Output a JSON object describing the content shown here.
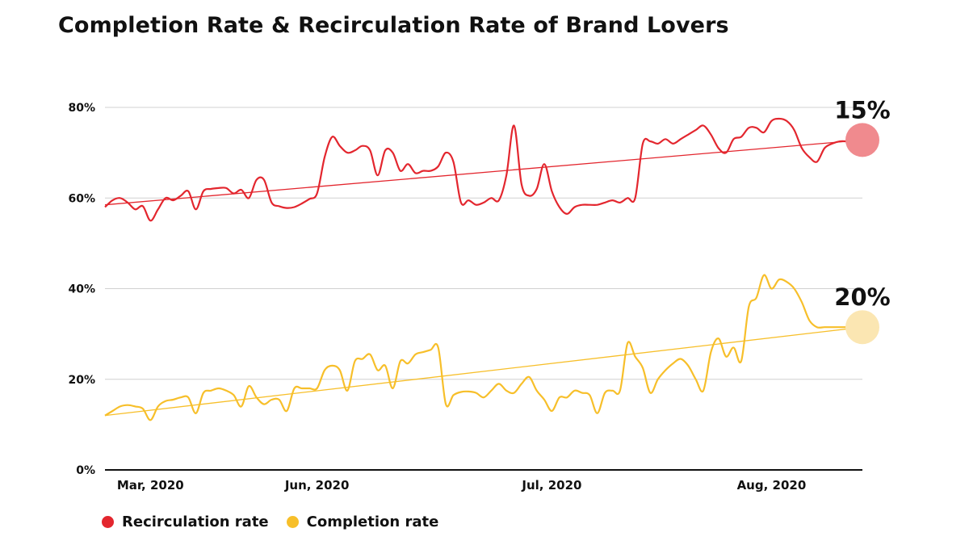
{
  "colors": {
    "recirculation": "#e3262e",
    "completion": "#f7bf2a",
    "recirculation_marker": "#f08a8e",
    "completion_marker": "#fbe6b2",
    "grid": "#d0d0d0",
    "axis": "#111111"
  },
  "chart_data": {
    "type": "line",
    "title": "Completion Rate & Recirculation Rate of Brand Lovers",
    "xlabel": "",
    "ylabel": "",
    "ylim": [
      0,
      80
    ],
    "y_ticks": [
      0,
      20,
      40,
      60,
      80
    ],
    "y_tick_labels": [
      "0%",
      "20%",
      "40%",
      "60%",
      "80%"
    ],
    "x_range": [
      0,
      100
    ],
    "x_tick_positions": [
      6,
      28,
      59,
      88
    ],
    "x_tick_labels": [
      "Mar, 2020",
      "Jun, 2020",
      "Jul, 2020",
      "Aug, 2020"
    ],
    "grid": true,
    "legend_position": "bottom-left",
    "series": [
      {
        "name": "Recirculation rate",
        "x": [
          0,
          1,
          2,
          3,
          4,
          5,
          6,
          7,
          8,
          9,
          10,
          11,
          12,
          13,
          14,
          15,
          16,
          17,
          18,
          19,
          20,
          21,
          22,
          23,
          24,
          25,
          26,
          27,
          28,
          29,
          30,
          31,
          32,
          33,
          34,
          35,
          36,
          37,
          38,
          39,
          40,
          41,
          42,
          43,
          44,
          45,
          46,
          47,
          48,
          49,
          50,
          51,
          52,
          53,
          54,
          55,
          56,
          57,
          58,
          59,
          60,
          61,
          62,
          63,
          64,
          65,
          66,
          67,
          68,
          69,
          70,
          71,
          72,
          73,
          74,
          75,
          76,
          77,
          78,
          79,
          80,
          81,
          82,
          83,
          84,
          85,
          86,
          87,
          88,
          89,
          90,
          91,
          92,
          93,
          94,
          95,
          96,
          97,
          98,
          99,
          100
        ],
        "values": [
          58,
          59.5,
          60,
          59,
          57.5,
          58.2,
          55,
          57.5,
          60,
          59.5,
          60.5,
          61.5,
          57.5,
          61.5,
          62,
          62.2,
          62.2,
          61,
          61.8,
          60,
          64,
          64,
          59,
          58.2,
          57.8,
          58,
          58.8,
          59.8,
          61,
          69,
          73.5,
          71.5,
          70,
          70.5,
          71.5,
          70.5,
          65,
          70.5,
          70,
          66,
          67.5,
          65.5,
          66,
          66,
          67,
          70,
          68,
          59,
          59.5,
          58.5,
          59,
          60,
          59.5,
          65,
          76,
          63,
          60.5,
          62,
          67.5,
          61.5,
          58,
          56.5,
          58,
          58.5,
          58.5,
          58.5,
          59,
          59.5,
          59,
          60,
          60,
          72,
          72.5,
          72,
          73,
          72,
          73,
          74,
          75,
          76,
          74,
          71,
          70,
          73,
          73.5,
          75.5,
          75.5,
          74.5,
          77,
          77.5,
          77,
          75,
          71,
          69,
          68,
          71,
          72,
          72.5,
          72.5,
          72.5,
          72.5
        ],
        "trend": [
          58.5,
          72.8
        ],
        "end_label": "15%"
      },
      {
        "name": "Completion rate",
        "x": [
          0,
          1,
          2,
          3,
          4,
          5,
          6,
          7,
          8,
          9,
          10,
          11,
          12,
          13,
          14,
          15,
          16,
          17,
          18,
          19,
          20,
          21,
          22,
          23,
          24,
          25,
          26,
          27,
          28,
          29,
          30,
          31,
          32,
          33,
          34,
          35,
          36,
          37,
          38,
          39,
          40,
          41,
          42,
          43,
          44,
          45,
          46,
          47,
          48,
          49,
          50,
          51,
          52,
          53,
          54,
          55,
          56,
          57,
          58,
          59,
          60,
          61,
          62,
          63,
          64,
          65,
          66,
          67,
          68,
          69,
          70,
          71,
          72,
          73,
          74,
          75,
          76,
          77,
          78,
          79,
          80,
          81,
          82,
          83,
          84,
          85,
          86,
          87,
          88,
          89,
          90,
          91,
          92,
          93,
          94,
          95,
          96,
          97,
          98,
          99,
          100
        ],
        "values": [
          12,
          13,
          14,
          14.3,
          14,
          13.5,
          11,
          14,
          15.2,
          15.5,
          16,
          16,
          12.5,
          17,
          17.5,
          18,
          17.5,
          16.5,
          14,
          18.5,
          16,
          14.5,
          15.5,
          15.5,
          13,
          18,
          18,
          18,
          18,
          22,
          23,
          22,
          17.5,
          24,
          24.5,
          25.5,
          22,
          23,
          18,
          24,
          23.5,
          25.5,
          26,
          26.5,
          27,
          14.5,
          16.5,
          17.2,
          17.3,
          17,
          16,
          17.5,
          19,
          17.5,
          17,
          19,
          20.5,
          17.5,
          15.5,
          13,
          16,
          16,
          17.5,
          17,
          16.5,
          12.5,
          17,
          17.5,
          17.5,
          28,
          25,
          22.5,
          17,
          20,
          22,
          23.5,
          24.5,
          23,
          20,
          17.5,
          26,
          29,
          25,
          27,
          24,
          36,
          38,
          43,
          40,
          42,
          41.5,
          40,
          37,
          33,
          31.5,
          31.5,
          31.5,
          31.5,
          31.5,
          31.5,
          31.5
        ],
        "trend": [
          12,
          31.5
        ],
        "end_label": "20%"
      }
    ]
  }
}
